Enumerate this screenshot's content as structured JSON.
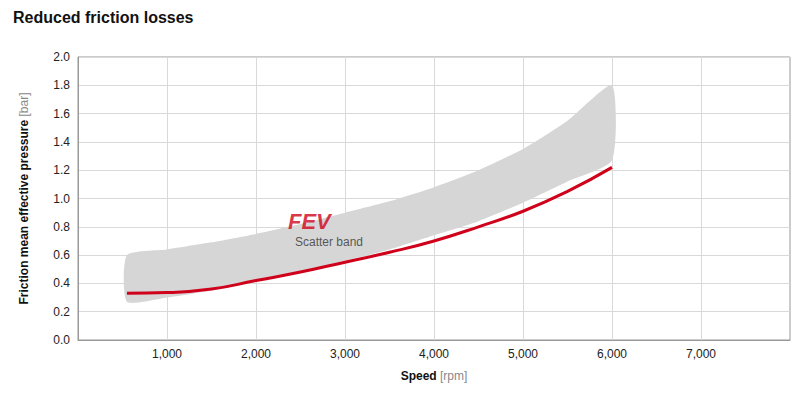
{
  "chart_data": {
    "type": "line",
    "title": "Reduced friction losses",
    "xlabel": "Speed",
    "xlabel_unit": "[rpm]",
    "ylabel": "Friction mean effective pressure",
    "ylabel_unit": "[bar]",
    "xlim": [
      0,
      8000
    ],
    "xticks": [
      {
        "value": 1000,
        "label": "1,000"
      },
      {
        "value": 2000,
        "label": "2,000"
      },
      {
        "value": 3000,
        "label": "3,000"
      },
      {
        "value": 4000,
        "label": "4,000"
      },
      {
        "value": 5000,
        "label": "5,000"
      },
      {
        "value": 6000,
        "label": "6,000"
      },
      {
        "value": 7000,
        "label": "7,000"
      }
    ],
    "ylim": [
      0,
      2
    ],
    "yticks": [
      {
        "value": 0,
        "label": "0.0"
      },
      0.2,
      0.4,
      0.6,
      0.8,
      {
        "value": 1,
        "label": "1.0"
      },
      1.2,
      1.4,
      1.6,
      1.8,
      {
        "value": 2,
        "label": "2.0"
      }
    ],
    "grid": true,
    "series": [
      {
        "type": "band",
        "color": "#d6d6d6",
        "x": [
          550,
          1000,
          1500,
          2000,
          2500,
          3000,
          3500,
          4000,
          4500,
          5000,
          5500,
          6000
        ],
        "lower": [
          0.27,
          0.3,
          0.35,
          0.41,
          0.48,
          0.56,
          0.64,
          0.74,
          0.84,
          0.97,
          1.12,
          1.27
        ],
        "upper": [
          0.6,
          0.64,
          0.69,
          0.75,
          0.82,
          0.9,
          0.98,
          1.08,
          1.2,
          1.35,
          1.55,
          1.8
        ]
      },
      {
        "type": "line",
        "color": "#d0021b",
        "x": [
          550,
          1000,
          1500,
          2000,
          2500,
          3000,
          3500,
          4000,
          4500,
          5000,
          5500,
          6000
        ],
        "values": [
          0.33,
          0.335,
          0.36,
          0.42,
          0.48,
          0.55,
          0.62,
          0.7,
          0.8,
          0.91,
          1.05,
          1.22
        ]
      }
    ],
    "annotations": [
      {
        "text": "FEV",
        "x": 2600,
        "y": 0.84,
        "color": "#d0021b"
      },
      {
        "text": "Scatter band",
        "x": 2820,
        "y": 0.69,
        "color": "#333333"
      }
    ]
  }
}
